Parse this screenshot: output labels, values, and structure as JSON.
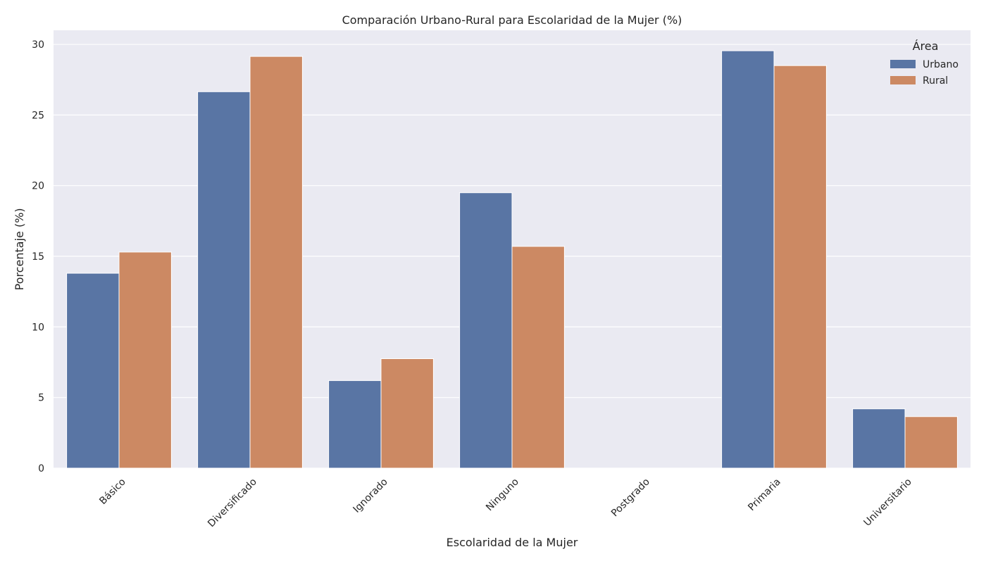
{
  "chart_data": {
    "type": "bar",
    "title": "Comparación Urbano-Rural para Escolaridad de la Mujer (%)",
    "xlabel": "Escolaridad de la Mujer",
    "ylabel": "Porcentaje (%)",
    "categories": [
      "Básico",
      "Diversificado",
      "Ignorado",
      "Ninguno",
      "Postgrado",
      "Primaria",
      "Universitario"
    ],
    "series": [
      {
        "name": "Urbano",
        "color": "#5975a4",
        "values": [
          13.8,
          26.65,
          6.2,
          19.5,
          0.0,
          29.55,
          4.2
        ]
      },
      {
        "name": "Rural",
        "color": "#cc8963",
        "values": [
          15.3,
          29.15,
          7.75,
          15.7,
          0.0,
          28.5,
          3.65
        ]
      }
    ],
    "ylim": [
      0,
      31
    ],
    "yticks": [
      "0",
      "5",
      "10",
      "15",
      "20",
      "25",
      "30"
    ],
    "grid": true,
    "legend": {
      "title": "Área",
      "position": "top-right"
    },
    "background": "#eaeaf2"
  }
}
